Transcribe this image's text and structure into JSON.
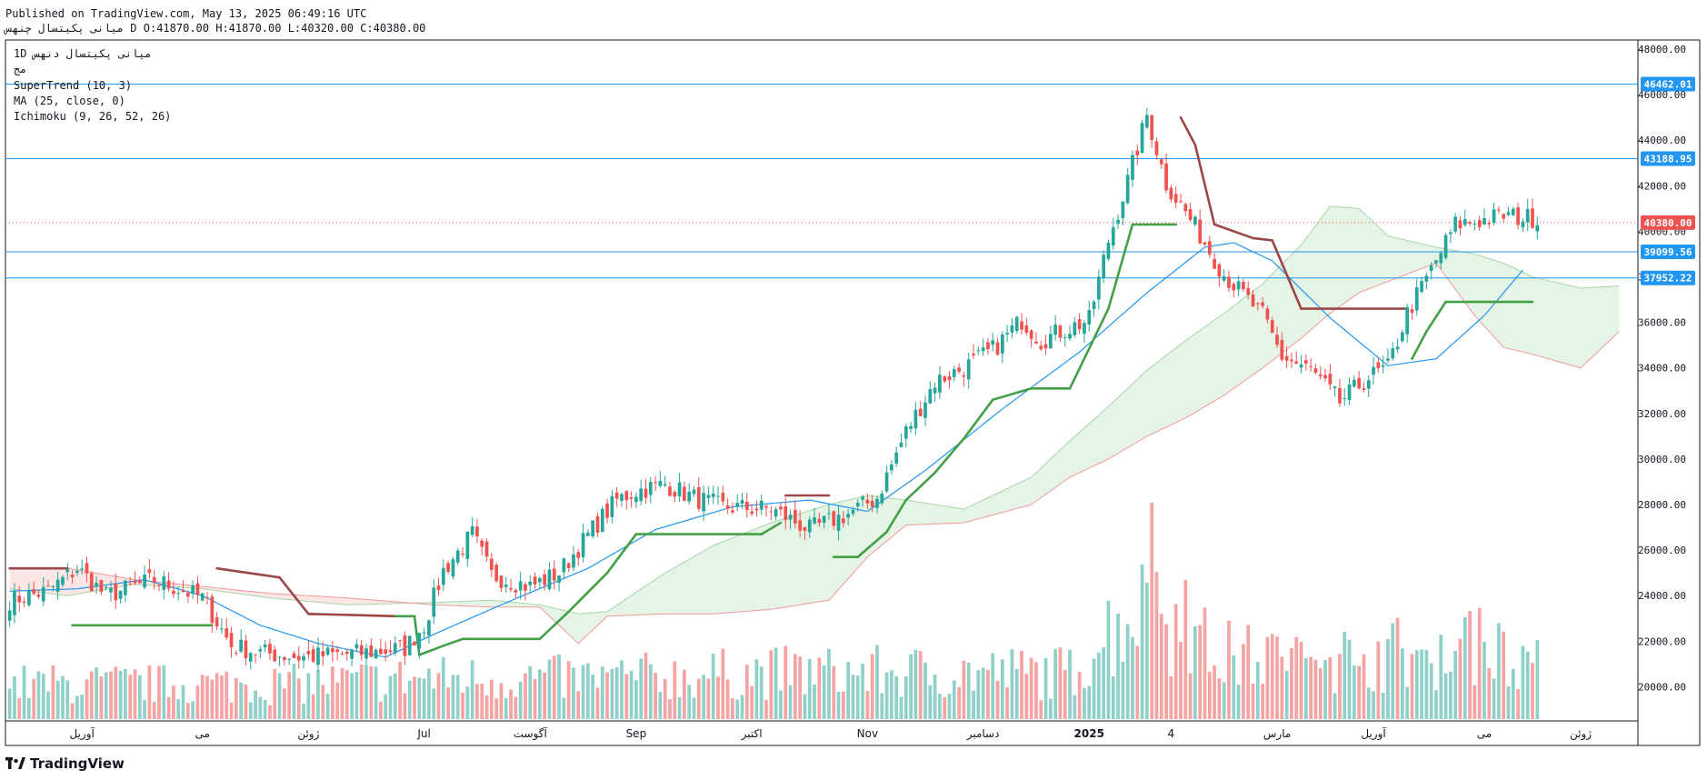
{
  "header": {
    "published": "Published on TradingView.com, May 13, 2025 06:49:16 UTC",
    "symbol_name": "ميانى پکيتسال",
    "exchange": "چنهس",
    "ohlc": "D O:41870.00 H:41870.00 L:40320.00 C:40380.00"
  },
  "legend": {
    "line1": "1D   ميانى پکيتسال   دنهس",
    "line2": "مج",
    "supertrend": "SuperTrend (10, 3)",
    "ma": "MA (25, close, 0)",
    "ichimoku": "Ichimoku (9, 26, 52, 26)"
  },
  "brand": {
    "name": "TradingView",
    "icon": "tradingview-logo-icon"
  },
  "colors": {
    "up": "#26a69a",
    "down": "#ef5350",
    "up_vol": "#8fd1c9",
    "down_vol": "#f5a3a3",
    "supertrend_up": "#43a047",
    "supertrend_down": "#9c4747",
    "ma": "#2196f3",
    "hline": "#2196f3",
    "last_price": "#ef5350",
    "cloud_bull": "#e6f4e6",
    "cloud_bear": "#fde6e6"
  },
  "chart_data": {
    "type": "candlestick",
    "ylim": [
      18500,
      48400
    ],
    "y_ticks": [
      "20000.00",
      "22000.00",
      "24000.00",
      "26000.00",
      "28000.00",
      "30000.00",
      "32000.00",
      "34000.00",
      "36000.00",
      "38000.00",
      "40000.00",
      "42000.00",
      "44000.00",
      "46000.00",
      "48000.00"
    ],
    "x_ticks": [
      "آوریل",
      "می",
      "ژوئن",
      "Jul",
      "آگوست",
      "Sep",
      "اکتبر",
      "Nov",
      "دسامبر",
      "2025",
      "4",
      "مارس",
      "آوریل",
      "می",
      "ژوئن"
    ],
    "x_tick_index": [
      15,
      40,
      62,
      86,
      108,
      130,
      154,
      178,
      202,
      224,
      241,
      263,
      283,
      306,
      326
    ],
    "horizontal_levels": [
      {
        "value": 46462.01,
        "label": "46462.01"
      },
      {
        "value": 43188.95,
        "label": "43188.95"
      },
      {
        "value": 39099.56,
        "label": "39099.56"
      },
      {
        "value": 37952.22,
        "label": "37952.22"
      }
    ],
    "last_price": {
      "value": 40380.0,
      "label": "40380.00"
    },
    "price_anchors": [
      [
        0,
        23800
      ],
      [
        8,
        24200
      ],
      [
        14,
        25200
      ],
      [
        20,
        24000
      ],
      [
        30,
        24700
      ],
      [
        40,
        23900
      ],
      [
        46,
        21800
      ],
      [
        52,
        21500
      ],
      [
        60,
        21300
      ],
      [
        74,
        21500
      ],
      [
        82,
        21700
      ],
      [
        86,
        22700
      ],
      [
        90,
        25100
      ],
      [
        96,
        26700
      ],
      [
        100,
        24900
      ],
      [
        108,
        24400
      ],
      [
        114,
        25000
      ],
      [
        122,
        27200
      ],
      [
        126,
        28200
      ],
      [
        130,
        28600
      ],
      [
        136,
        28900
      ],
      [
        142,
        28300
      ],
      [
        148,
        27900
      ],
      [
        158,
        27800
      ],
      [
        166,
        26900
      ],
      [
        174,
        27600
      ],
      [
        180,
        28300
      ],
      [
        186,
        31200
      ],
      [
        192,
        33400
      ],
      [
        198,
        34000
      ],
      [
        204,
        34800
      ],
      [
        210,
        36100
      ],
      [
        214,
        35200
      ],
      [
        218,
        35600
      ],
      [
        224,
        36100
      ],
      [
        228,
        39600
      ],
      [
        232,
        42200
      ],
      [
        236,
        45100
      ],
      [
        240,
        42100
      ],
      [
        246,
        40200
      ],
      [
        252,
        38100
      ],
      [
        260,
        36300
      ],
      [
        264,
        34500
      ],
      [
        270,
        33900
      ],
      [
        276,
        32500
      ],
      [
        282,
        33600
      ],
      [
        286,
        34000
      ],
      [
        290,
        36400
      ],
      [
        296,
        38700
      ],
      [
        300,
        40300
      ],
      [
        306,
        40500
      ],
      [
        310,
        40700
      ],
      [
        314,
        40600
      ]
    ],
    "supertrend_anchors": [
      [
        0,
        25200,
        "d"
      ],
      [
        12,
        25200,
        "d"
      ],
      [
        13,
        22700,
        "u"
      ],
      [
        42,
        22700,
        "u"
      ],
      [
        43,
        25200,
        "d"
      ],
      [
        56,
        24800,
        "d"
      ],
      [
        62,
        23200,
        "d"
      ],
      [
        80,
        23100,
        "d"
      ],
      [
        84,
        23100,
        "u"
      ],
      [
        85,
        21400,
        "u"
      ],
      [
        90,
        21800,
        "u"
      ],
      [
        94,
        22100,
        "u"
      ],
      [
        110,
        22100,
        "u"
      ],
      [
        116,
        23300,
        "u"
      ],
      [
        124,
        25000,
        "u"
      ],
      [
        130,
        26700,
        "u"
      ],
      [
        156,
        26700,
        "u"
      ],
      [
        160,
        27200,
        "u"
      ],
      [
        161,
        28400,
        "d"
      ],
      [
        170,
        28400,
        "d"
      ],
      [
        171,
        25700,
        "u"
      ],
      [
        176,
        25700,
        "u"
      ],
      [
        182,
        26800,
        "u"
      ],
      [
        186,
        28200,
        "u"
      ],
      [
        192,
        29400,
        "u"
      ],
      [
        198,
        30900,
        "u"
      ],
      [
        204,
        32600,
        "u"
      ],
      [
        212,
        33100,
        "u"
      ],
      [
        220,
        33100,
        "u"
      ],
      [
        228,
        36600,
        "u"
      ],
      [
        233,
        40300,
        "u"
      ],
      [
        242,
        40300,
        "u"
      ],
      [
        243,
        45000,
        "d"
      ],
      [
        246,
        43800,
        "d"
      ],
      [
        250,
        40300,
        "d"
      ],
      [
        258,
        39700,
        "d"
      ],
      [
        262,
        39600,
        "d"
      ],
      [
        268,
        36600,
        "d"
      ],
      [
        290,
        36600,
        "d"
      ],
      [
        291,
        34400,
        "u"
      ],
      [
        294,
        35600,
        "u"
      ],
      [
        298,
        36900,
        "u"
      ],
      [
        316,
        36900,
        "u"
      ]
    ],
    "ma_anchors": [
      [
        0,
        24200
      ],
      [
        14,
        24300
      ],
      [
        28,
        24700
      ],
      [
        40,
        24000
      ],
      [
        52,
        22700
      ],
      [
        64,
        21900
      ],
      [
        78,
        21300
      ],
      [
        88,
        22300
      ],
      [
        102,
        23600
      ],
      [
        120,
        25200
      ],
      [
        134,
        26900
      ],
      [
        150,
        27900
      ],
      [
        166,
        28200
      ],
      [
        178,
        27700
      ],
      [
        190,
        29500
      ],
      [
        206,
        32200
      ],
      [
        222,
        34700
      ],
      [
        236,
        37300
      ],
      [
        248,
        39300
      ],
      [
        254,
        39500
      ],
      [
        262,
        38700
      ],
      [
        274,
        36200
      ],
      [
        286,
        34100
      ],
      [
        296,
        34400
      ],
      [
        306,
        36300
      ],
      [
        314,
        38300
      ]
    ],
    "span_a_anchors": [
      [
        0,
        24300
      ],
      [
        12,
        24000
      ],
      [
        26,
        24500
      ],
      [
        40,
        24300
      ],
      [
        54,
        23900
      ],
      [
        70,
        23600
      ],
      [
        88,
        23700
      ],
      [
        100,
        23800
      ],
      [
        110,
        23600
      ],
      [
        118,
        23200
      ],
      [
        124,
        23300
      ],
      [
        136,
        25000
      ],
      [
        146,
        26200
      ],
      [
        158,
        27200
      ],
      [
        170,
        28000
      ],
      [
        178,
        28400
      ],
      [
        186,
        28200
      ],
      [
        198,
        27800
      ],
      [
        212,
        29200
      ],
      [
        220,
        30800
      ],
      [
        228,
        32300
      ],
      [
        236,
        33900
      ],
      [
        244,
        35200
      ],
      [
        252,
        36400
      ],
      [
        260,
        37700
      ],
      [
        268,
        39400
      ],
      [
        274,
        41100
      ],
      [
        280,
        41000
      ],
      [
        286,
        39800
      ],
      [
        296,
        39300
      ],
      [
        304,
        39000
      ],
      [
        310,
        38600
      ],
      [
        316,
        38000
      ],
      [
        326,
        37500
      ],
      [
        334,
        37600
      ]
    ],
    "span_b_anchors": [
      [
        0,
        25200
      ],
      [
        12,
        25200
      ],
      [
        26,
        24700
      ],
      [
        40,
        24400
      ],
      [
        54,
        24100
      ],
      [
        70,
        23900
      ],
      [
        88,
        23600
      ],
      [
        100,
        23500
      ],
      [
        110,
        23500
      ],
      [
        118,
        21900
      ],
      [
        124,
        23100
      ],
      [
        136,
        23200
      ],
      [
        146,
        23200
      ],
      [
        158,
        23400
      ],
      [
        170,
        23800
      ],
      [
        178,
        25700
      ],
      [
        186,
        27100
      ],
      [
        198,
        27200
      ],
      [
        212,
        28000
      ],
      [
        220,
        29200
      ],
      [
        228,
        30000
      ],
      [
        236,
        31000
      ],
      [
        244,
        31800
      ],
      [
        252,
        32800
      ],
      [
        260,
        34000
      ],
      [
        268,
        35300
      ],
      [
        274,
        36400
      ],
      [
        280,
        37300
      ],
      [
        286,
        37800
      ],
      [
        296,
        38600
      ],
      [
        304,
        36300
      ],
      [
        310,
        34900
      ],
      [
        316,
        34600
      ],
      [
        326,
        34000
      ],
      [
        334,
        35600
      ]
    ],
    "volume_anchors": [
      [
        0,
        0.3
      ],
      [
        60,
        0.3
      ],
      [
        84,
        0.35
      ],
      [
        120,
        0.35
      ],
      [
        160,
        0.4
      ],
      [
        220,
        0.4
      ],
      [
        236,
        1.1
      ],
      [
        250,
        0.55
      ],
      [
        270,
        0.5
      ],
      [
        296,
        0.6
      ],
      [
        310,
        0.7
      ],
      [
        318,
        0.4
      ]
    ],
    "volume_spikes": [
      [
        235,
        1.0
      ],
      [
        237,
        1.4
      ],
      [
        243,
        0.5
      ],
      [
        246,
        0.6
      ],
      [
        262,
        0.55
      ],
      [
        281,
        0.42
      ],
      [
        293,
        0.45
      ],
      [
        301,
        0.52
      ],
      [
        302,
        0.66
      ],
      [
        303,
        0.7
      ],
      [
        306,
        0.5
      ]
    ],
    "n_bars": 318,
    "seed": 7
  }
}
